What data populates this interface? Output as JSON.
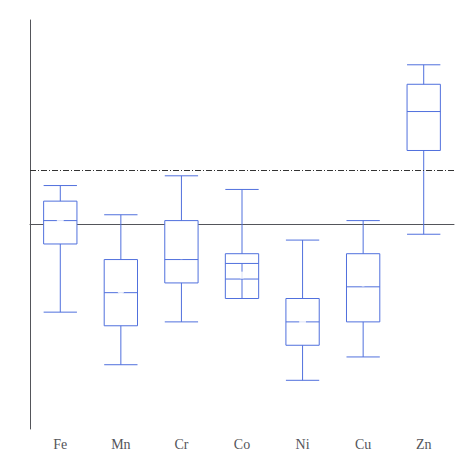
{
  "chart_data": {
    "type": "box",
    "categories": [
      "Fe",
      "Mn",
      "Cr",
      "Co",
      "Ni",
      "Cu",
      "Zn"
    ],
    "series": [
      {
        "type": "boxplot",
        "values": [
          [
            -0.45,
            -0.1,
            0.02,
            0.12,
            0.2
          ],
          [
            -0.72,
            -0.52,
            -0.35,
            -0.18,
            0.05
          ],
          [
            -0.5,
            -0.3,
            -0.18,
            0.02,
            0.25
          ],
          [
            -0.2,
            -0.38,
            -0.28,
            -0.15,
            0.18
          ],
          [
            -0.8,
            -0.62,
            -0.5,
            -0.38,
            -0.08
          ],
          [
            -0.68,
            -0.5,
            -0.32,
            -0.15,
            0.02
          ],
          [
            -0.05,
            0.38,
            0.58,
            0.72,
            0.82
          ]
        ]
      },
      {
        "type": "scatter",
        "marker": "circle",
        "values": [
          0.02,
          -0.34,
          -0.16,
          -0.26,
          -0.5,
          -0.3,
          0.55
        ]
      },
      {
        "type": "hline",
        "value": 0.28,
        "line_style": "dashdot"
      }
    ],
    "ylim": [
      -1.05,
      1.05
    ],
    "yticks": [],
    "grid": false,
    "tick_labels": "x"
  }
}
